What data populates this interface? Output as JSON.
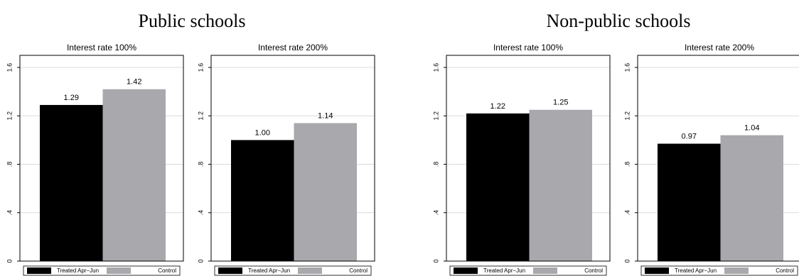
{
  "group_titles": [
    "Public schools",
    "Non-public schools"
  ],
  "chart_data": [
    {
      "type": "bar",
      "title": "Interest rate 100%",
      "ylim": [
        0,
        1.7
      ],
      "yticks": [
        0,
        {
          "value": 0.4,
          "label": ".4"
        },
        {
          "value": 0.8,
          "label": ".8"
        },
        1.2,
        1.6
      ],
      "grid": true,
      "series": [
        {
          "name": "Treated Apr−Jun",
          "color": "#000000",
          "values": [
            1.29
          ],
          "value_labels": [
            "1.29"
          ]
        },
        {
          "name": "Control",
          "color": "#a9a9ad",
          "values": [
            1.42
          ],
          "value_labels": [
            "1.42"
          ]
        }
      ]
    },
    {
      "type": "bar",
      "title": "Interest rate 200%",
      "ylim": [
        0,
        1.7
      ],
      "yticks": [
        0,
        {
          "value": 0.4,
          "label": ".4"
        },
        {
          "value": 0.8,
          "label": ".8"
        },
        1.2,
        1.6
      ],
      "grid": true,
      "series": [
        {
          "name": "Treated Apr−Jun",
          "color": "#000000",
          "values": [
            1.0
          ],
          "value_labels": [
            "1.00"
          ]
        },
        {
          "name": "Control",
          "color": "#a9a9ad",
          "values": [
            1.14
          ],
          "value_labels": [
            "1.14"
          ]
        }
      ]
    },
    {
      "type": "bar",
      "title": "Interest rate 100%",
      "ylim": [
        0,
        1.7
      ],
      "yticks": [
        0,
        {
          "value": 0.4,
          "label": ".4"
        },
        {
          "value": 0.8,
          "label": ".8"
        },
        1.2,
        1.6
      ],
      "grid": true,
      "series": [
        {
          "name": "Treated Apr−Jun",
          "color": "#000000",
          "values": [
            1.22
          ],
          "value_labels": [
            "1.22"
          ]
        },
        {
          "name": "Control",
          "color": "#a9a9ad",
          "values": [
            1.25
          ],
          "value_labels": [
            "1.25"
          ]
        }
      ]
    },
    {
      "type": "bar",
      "title": "Interest rate 200%",
      "ylim": [
        0,
        1.7
      ],
      "yticks": [
        0,
        {
          "value": 0.4,
          "label": ".4"
        },
        {
          "value": 0.8,
          "label": ".8"
        },
        1.2,
        1.6
      ],
      "grid": true,
      "series": [
        {
          "name": "Treated Apr−Jun",
          "color": "#000000",
          "values": [
            0.97
          ],
          "value_labels": [
            "0.97"
          ]
        },
        {
          "name": "Control",
          "color": "#a9a9ad",
          "values": [
            1.04
          ],
          "value_labels": [
            "1.04"
          ]
        }
      ]
    }
  ]
}
